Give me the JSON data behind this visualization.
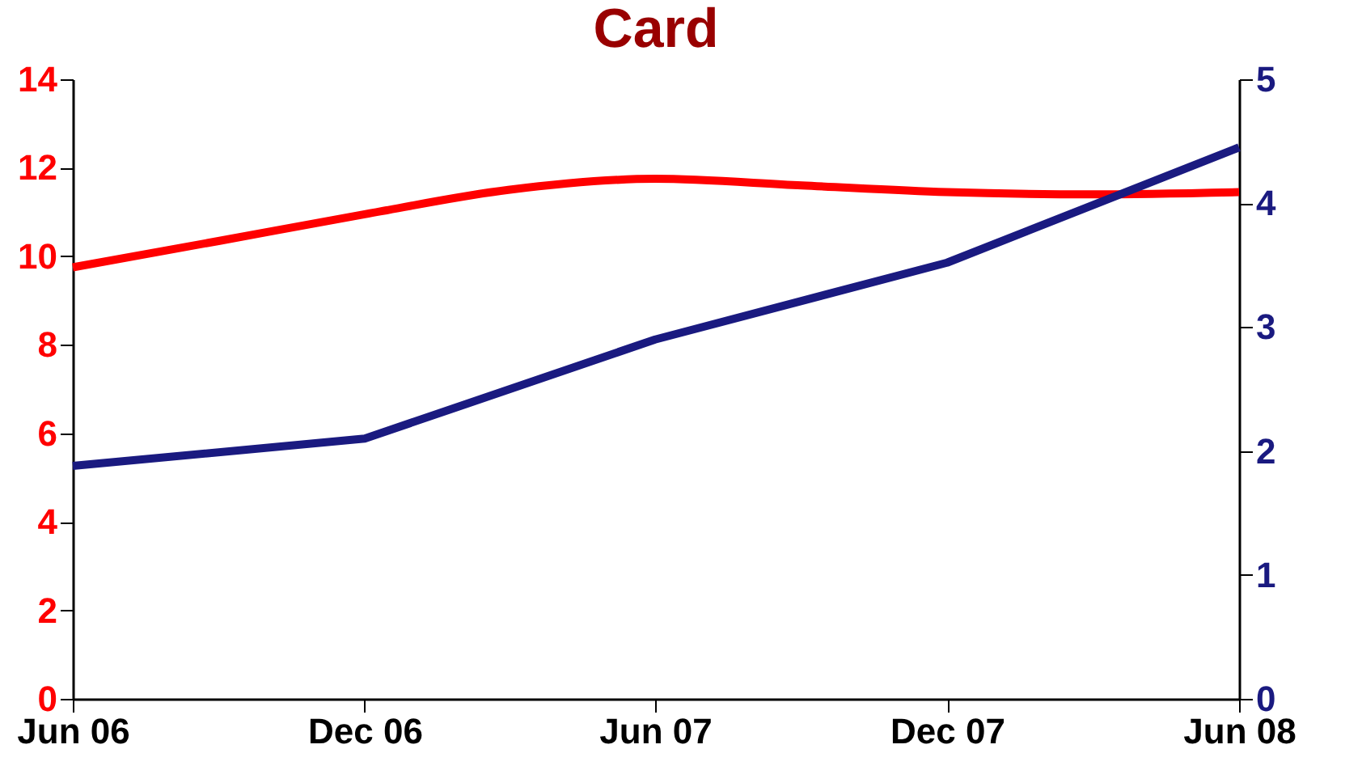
{
  "chart_data": {
    "type": "line",
    "title": "Card",
    "series": [
      {
        "color": "#ff0000",
        "x": [
          "2006-06-01",
          "2006-09-01",
          "2006-12-01",
          "2007-03-01",
          "2007-06-01",
          "2007-09-01",
          "2007-12-01",
          "2008-03-01",
          "2008-06-01"
        ],
        "values": [
          9.75,
          10.35,
          10.95,
          11.5,
          11.75,
          11.6,
          11.45,
          11.4,
          11.45
        ]
      },
      {
        "color": "#1a1a80",
        "axis": "y2",
        "x": [
          "2006-06-01",
          "2006-12-01",
          "2007-06-01",
          "2007-12-01",
          "2008-06-01"
        ],
        "values": [
          1.88,
          2.1,
          2.9,
          3.52,
          4.45
        ]
      }
    ],
    "xlim": [
      "2006-06-01",
      "2008-06-01"
    ],
    "xticks": [
      {
        "value": "2006-06-01",
        "label": "Jun 06"
      },
      {
        "value": "2006-12-01",
        "label": "Dec 06"
      },
      {
        "value": "2007-06-01",
        "label": "Jun 07"
      },
      {
        "value": "2007-12-01",
        "label": "Dec 07"
      },
      {
        "value": "2008-06-01",
        "label": "Jun 08"
      }
    ],
    "ylim": [
      0,
      14
    ],
    "yticks": [
      0,
      2,
      4,
      6,
      8,
      10,
      12,
      14
    ],
    "y2lim": [
      0,
      5
    ],
    "y2ticks": [
      0,
      1,
      2,
      3,
      4,
      5
    ],
    "grid": false,
    "marker": "none",
    "line_style": "solid"
  }
}
